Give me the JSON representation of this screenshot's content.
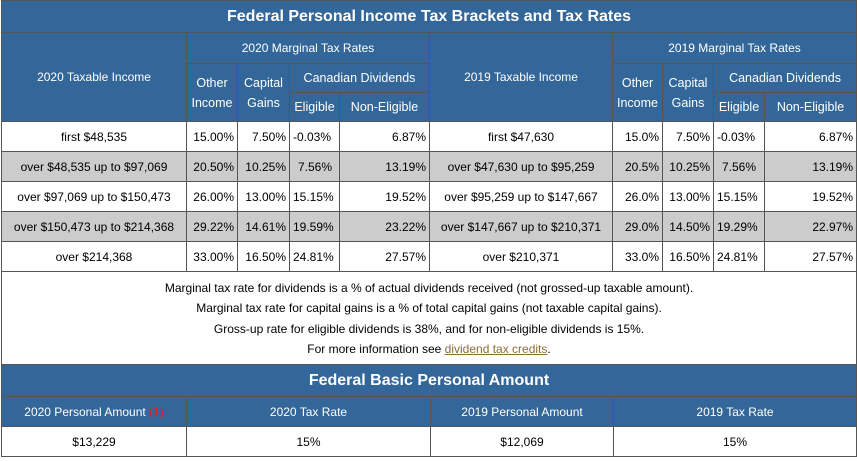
{
  "title": "Federal Personal Income Tax Brackets and Tax Rates",
  "headers": {
    "income_2020": "2020 Taxable Income",
    "marginal_2020": "2020 Marginal Tax Rates",
    "income_2019": "2019 Taxable Income",
    "marginal_2019": "2019 Marginal Tax Rates",
    "other_income_line1": "Other",
    "other_income_line2": "Income",
    "capital_gains_line1": "Capital",
    "capital_gains_line2": "Gains",
    "canadian_dividends": "Canadian Dividends",
    "eligible": "Eligible",
    "non_eligible": "Non-Eligible"
  },
  "rows": [
    {
      "income_2020": "first $48,535",
      "other_2020": "15.00%",
      "cap_2020": "7.50%",
      "elig_2020": "-0.03%",
      "nonelig_2020": "6.87%",
      "income_2019": "first $47,630",
      "other_2019": "15.0%",
      "cap_2019": "7.50%",
      "elig_2019": "-0.03%",
      "nonelig_2019": "6.87%"
    },
    {
      "income_2020": "over $48,535 up to $97,069",
      "other_2020": "20.50%",
      "cap_2020": "10.25%",
      "elig_2020": "7.56%",
      "nonelig_2020": "13.19%",
      "income_2019": "over $47,630 up to $95,259",
      "other_2019": "20.5%",
      "cap_2019": "10.25%",
      "elig_2019": "7.56%",
      "nonelig_2019": "13.19%"
    },
    {
      "income_2020": "over $97,069 up to $150,473",
      "other_2020": "26.00%",
      "cap_2020": "13.00%",
      "elig_2020": "15.15%",
      "nonelig_2020": "19.52%",
      "income_2019": "over $95,259 up to $147,667",
      "other_2019": "26.0%",
      "cap_2019": "13.00%",
      "elig_2019": "15.15%",
      "nonelig_2019": "19.52%"
    },
    {
      "income_2020": "over $150,473 up to $214,368",
      "other_2020": "29.22%",
      "cap_2020": "14.61%",
      "elig_2020": "19.59%",
      "nonelig_2020": "23.22%",
      "income_2019": "over $147,667 up to $210,371",
      "other_2019": "29.0%",
      "cap_2019": "14.50%",
      "elig_2019": "19.29%",
      "nonelig_2019": "22.97%"
    },
    {
      "income_2020": "over $214,368",
      "other_2020": "33.00%",
      "cap_2020": "16.50%",
      "elig_2020": "24.81%",
      "nonelig_2020": "27.57%",
      "income_2019": "over $210,371",
      "other_2019": "33.0%",
      "cap_2019": "16.50%",
      "elig_2019": "24.81%",
      "nonelig_2019": "27.57%"
    }
  ],
  "notes": {
    "line1": "Marginal tax rate for dividends is a % of actual dividends received (not grossed-up taxable amount).",
    "line2": "Marginal tax rate for capital gains is a % of total capital gains (not taxable capital gains).",
    "line3": "Gross-up rate for eligible dividends is 38%, and for non-eligible dividends is 15%.",
    "line4_prefix": "For more information see ",
    "line4_link": "dividend tax credits",
    "line4_suffix": "."
  },
  "basic": {
    "title": "Federal Basic Personal Amount",
    "h_personal_2020": "2020 Personal Amount",
    "h_personal_2020_note": "(1)",
    "h_rate_2020": "2020 Tax Rate",
    "h_personal_2019": "2019 Personal Amount",
    "h_rate_2019": "2019 Tax Rate",
    "personal_2020": "$13,229",
    "rate_2020": "15%",
    "personal_2019": "$12,069",
    "rate_2019": "15%"
  }
}
